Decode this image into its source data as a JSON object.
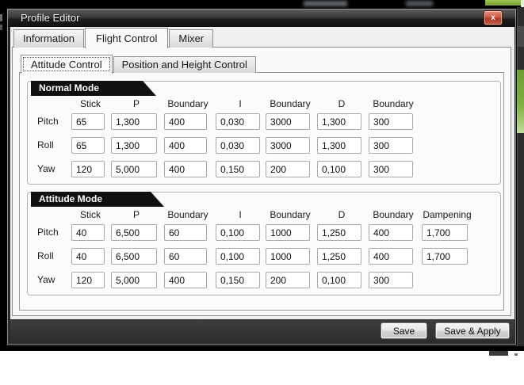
{
  "window": {
    "title": "Profile Editor",
    "close_glyph": "x"
  },
  "tabs": [
    {
      "label": "Information",
      "active": false
    },
    {
      "label": "Flight Control",
      "active": true
    },
    {
      "label": "Mixer",
      "active": false
    }
  ],
  "subtabs": [
    {
      "label": "Attitude Control",
      "active": true
    },
    {
      "label": "Position and Height Control",
      "active": false
    }
  ],
  "groups": [
    {
      "title": "Normal Mode",
      "columns": [
        "Stick",
        "P",
        "Boundary",
        "I",
        "Boundary",
        "D",
        "Boundary"
      ],
      "rows": [
        {
          "label": "Pitch",
          "values": [
            "65",
            "1,300",
            "400",
            "0,030",
            "3000",
            "1,300",
            "300"
          ]
        },
        {
          "label": "Roll",
          "values": [
            "65",
            "1,300",
            "400",
            "0,030",
            "3000",
            "1,300",
            "300"
          ]
        },
        {
          "label": "Yaw",
          "values": [
            "120",
            "5,000",
            "400",
            "0,150",
            "200",
            "0,100",
            "300"
          ]
        }
      ]
    },
    {
      "title": "Attitude Mode",
      "columns": [
        "Stick",
        "P",
        "Boundary",
        "I",
        "Boundary",
        "D",
        "Boundary",
        "Dampening"
      ],
      "rows": [
        {
          "label": "Pitch",
          "values": [
            "40",
            "6,500",
            "60",
            "0,100",
            "1000",
            "1,250",
            "400",
            "1,700"
          ]
        },
        {
          "label": "Roll",
          "values": [
            "40",
            "6,500",
            "60",
            "0,100",
            "1000",
            "1,250",
            "400",
            "1,700"
          ]
        },
        {
          "label": "Yaw",
          "values": [
            "120",
            "5,000",
            "400",
            "0,150",
            "200",
            "0,100",
            "300"
          ]
        }
      ]
    }
  ],
  "footer": {
    "save_label": "Save",
    "save_apply_label": "Save & Apply"
  },
  "colors": {
    "accent_green": "#7fb040",
    "close_red": "#c14433",
    "footer_dark": "#333333",
    "group_header_black": "#101010"
  }
}
